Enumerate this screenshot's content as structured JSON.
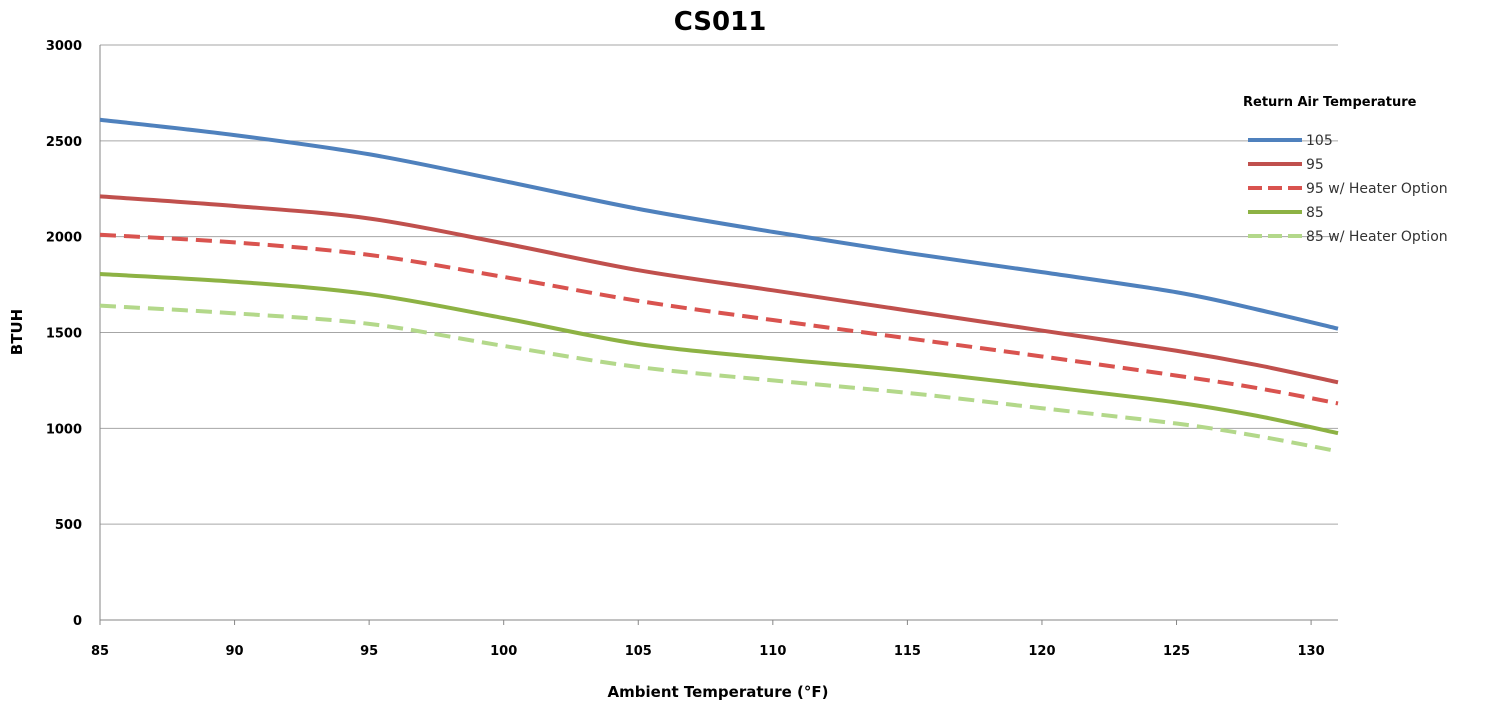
{
  "chart_data": {
    "type": "line",
    "title": "CS011",
    "xlabel": "Ambient Temperature (°F)",
    "ylabel": "BTUH",
    "xlim": [
      85,
      131
    ],
    "ylim": [
      0,
      3000
    ],
    "x_ticks": [
      85,
      90,
      95,
      100,
      105,
      110,
      115,
      120,
      125,
      130
    ],
    "y_ticks": [
      0,
      500,
      1000,
      1500,
      2000,
      2500,
      3000
    ],
    "grid": "horizontal",
    "legend": {
      "title": "Return Air Temperature",
      "placement": "right"
    },
    "series": [
      {
        "name": "105",
        "color": "#4f81bd",
        "dash": "solid",
        "points": [
          [
            85,
            2610
          ],
          [
            90,
            2530
          ],
          [
            95,
            2430
          ],
          [
            100,
            2290
          ],
          [
            105,
            2145
          ],
          [
            110,
            2025
          ],
          [
            115,
            1915
          ],
          [
            120,
            1815
          ],
          [
            125,
            1710
          ],
          [
            128,
            1620
          ],
          [
            131,
            1520
          ]
        ]
      },
      {
        "name": "95",
        "color": "#c0504d",
        "dash": "solid",
        "points": [
          [
            85,
            2210
          ],
          [
            90,
            2160
          ],
          [
            95,
            2095
          ],
          [
            100,
            1965
          ],
          [
            105,
            1825
          ],
          [
            110,
            1720
          ],
          [
            115,
            1615
          ],
          [
            120,
            1510
          ],
          [
            125,
            1405
          ],
          [
            128,
            1330
          ],
          [
            131,
            1240
          ]
        ]
      },
      {
        "name": "95 w/ Heater Option",
        "color": "#d9534f",
        "dash": "dashed",
        "points": [
          [
            85,
            2010
          ],
          [
            90,
            1970
          ],
          [
            95,
            1905
          ],
          [
            100,
            1790
          ],
          [
            105,
            1665
          ],
          [
            110,
            1565
          ],
          [
            115,
            1470
          ],
          [
            120,
            1375
          ],
          [
            125,
            1275
          ],
          [
            128,
            1210
          ],
          [
            131,
            1130
          ]
        ]
      },
      {
        "name": "85",
        "color": "#8db244",
        "dash": "solid",
        "points": [
          [
            85,
            1805
          ],
          [
            90,
            1765
          ],
          [
            95,
            1700
          ],
          [
            100,
            1575
          ],
          [
            105,
            1440
          ],
          [
            110,
            1365
          ],
          [
            115,
            1300
          ],
          [
            120,
            1220
          ],
          [
            125,
            1135
          ],
          [
            128,
            1065
          ],
          [
            131,
            975
          ]
        ]
      },
      {
        "name": "85 w/ Heater Option",
        "color": "#b3d88a",
        "dash": "dashed",
        "points": [
          [
            85,
            1640
          ],
          [
            90,
            1600
          ],
          [
            95,
            1545
          ],
          [
            100,
            1430
          ],
          [
            105,
            1320
          ],
          [
            110,
            1250
          ],
          [
            115,
            1185
          ],
          [
            120,
            1105
          ],
          [
            125,
            1025
          ],
          [
            128,
            960
          ],
          [
            131,
            880
          ]
        ]
      }
    ]
  }
}
